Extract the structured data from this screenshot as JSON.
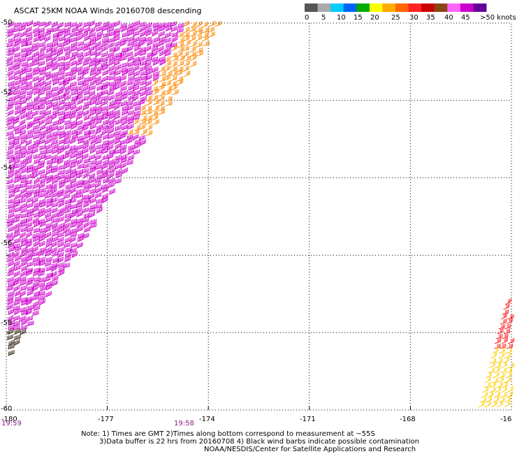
{
  "title": "ASCAT 25KM NOAA Winds 20160708 descending",
  "legend": {
    "unit_label": ">50 knots",
    "ticks": [
      "0",
      "5",
      "10",
      "15",
      "20",
      "25",
      "30",
      "35",
      "40",
      "45"
    ],
    "colors": [
      "#555555",
      "#aaaaaa",
      "#00ccff",
      "#0066ff",
      "#00aa00",
      "#ffff00",
      "#ffaa00",
      "#ff6600",
      "#ff2222",
      "#cc0000",
      "#8b4513",
      "#ff66ff",
      "#cc00cc",
      "#660099"
    ]
  },
  "axes": {
    "lat_labels": [
      "-50",
      "-52",
      "-54",
      "-56",
      "-58",
      "-60"
    ],
    "lon_labels": [
      "-180",
      "-177",
      "-174",
      "-171",
      "-168",
      "-16"
    ],
    "lat_range": [
      -60,
      -50
    ],
    "lon_range": [
      -180,
      -165
    ]
  },
  "times": [
    "19:59",
    "19:58"
  ],
  "notes": [
    "Note: 1) Times are GMT 2)Times along bottom correspond to measurement at ~55S",
    "3)Data buffer is 22 hrs from 20160708 4) Black wind barbs indicate possible contamination",
    "NOAA/NESDIS/Center for Satellite Applications and Research"
  ],
  "chart_data": {
    "type": "scatter",
    "description_units": "wind barbs, knots",
    "swaths": [
      {
        "name": "",
        "lon_range": [
          -180,
          -173.6
        ],
        "lat_range": [
          -58.8,
          -50
        ],
        "speed_range_knots": [
          25,
          50
        ]
      },
      {
        "name": "",
        "lon_range": [
          -165.8,
          -165
        ],
        "lat_range": [
          -60,
          -57.2
        ],
        "speed_range_knots": [
          20,
          35
        ]
      }
    ]
  }
}
